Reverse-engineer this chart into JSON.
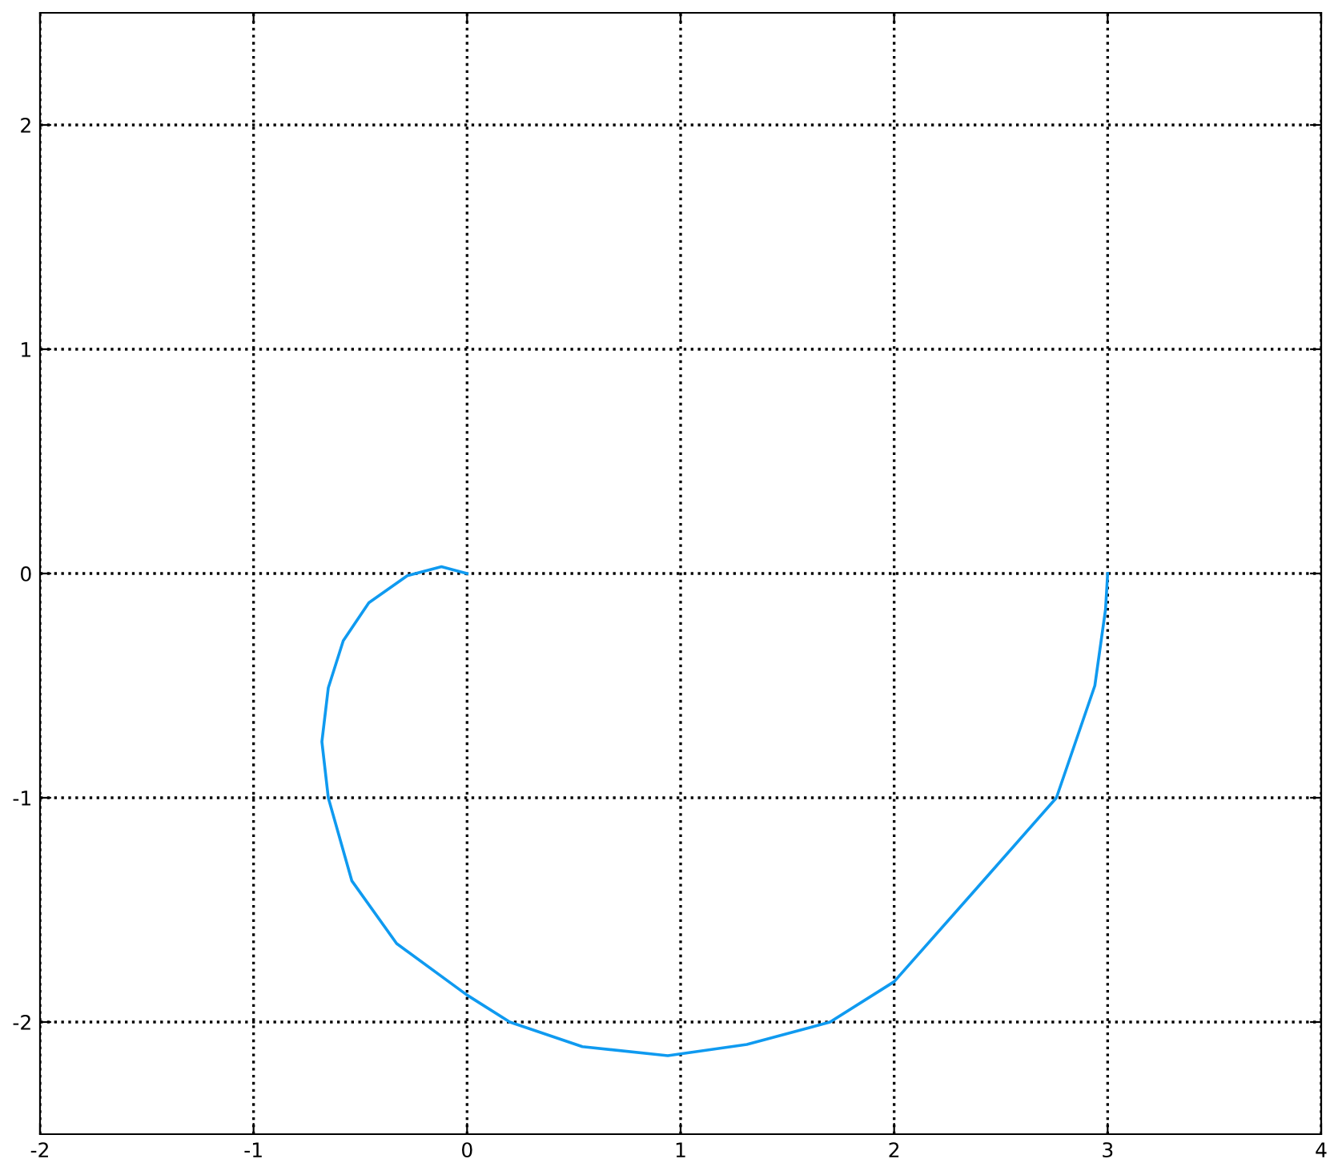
{
  "chart_data": {
    "type": "line",
    "series": [
      {
        "color": "#0f9af0",
        "x": [
          3.0,
          2.99,
          2.94,
          2.76,
          2.39,
          2.0,
          1.7,
          1.31,
          0.94,
          0.54,
          0.2,
          0.0,
          -0.33,
          -0.54,
          -0.65,
          -0.68,
          -0.65,
          -0.58,
          -0.46,
          -0.28,
          -0.12,
          -0.04,
          0.0
        ],
        "values": [
          0.0,
          -0.16,
          -0.5,
          -1.0,
          -1.4,
          -1.82,
          -2.0,
          -2.1,
          -2.15,
          -2.11,
          -2.0,
          -1.88,
          -1.65,
          -1.37,
          -1.0,
          -0.75,
          -0.51,
          -0.3,
          -0.13,
          -0.01,
          0.03,
          0.01,
          0.0
        ]
      }
    ],
    "xlim": [
      -2,
      4
    ],
    "ylim": [
      -2.5,
      2.5
    ],
    "xticks": [
      -2,
      -1,
      0,
      1,
      2,
      3,
      4
    ],
    "yticks": [
      -2,
      -1,
      0,
      1,
      2
    ],
    "grid": true,
    "marker": "none",
    "line_style": "solid",
    "legend": false
  }
}
